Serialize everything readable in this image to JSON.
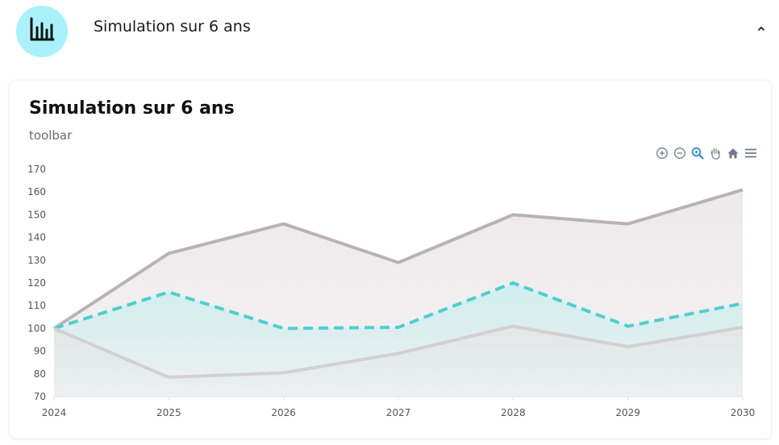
{
  "header": {
    "title": "Simulation sur 6 ans",
    "icon": "bar-chart-icon",
    "collapse_icon": "chevron-up-icon"
  },
  "card": {
    "title": "Simulation sur 6 ans",
    "subtitle": "toolbar"
  },
  "toolbar": {
    "icons": [
      "zoom-in-icon",
      "zoom-out-icon",
      "selection-zoom-icon",
      "pan-hand-icon",
      "home-reset-icon",
      "menu-icon"
    ]
  },
  "colors": {
    "avatar_bg": "#a9f2fb",
    "upper_line": "#b9b2b5",
    "middle_line": "#4ecfcf",
    "lower_line": "#d3d0d1",
    "toolbar_active": "#2a89d4",
    "toolbar_icon": "#6e7a89"
  },
  "chart_data": {
    "type": "area",
    "title": "Simulation sur 6 ans",
    "xlabel": "",
    "ylabel": "",
    "x": [
      "2024",
      "2025",
      "2026",
      "2027",
      "2028",
      "2029",
      "2030"
    ],
    "ylim": [
      70,
      170
    ],
    "yticks": [
      70,
      80,
      90,
      100,
      110,
      120,
      130,
      140,
      150,
      160,
      170
    ],
    "grid": false,
    "legend": "none",
    "series": [
      {
        "values": [
          100,
          133,
          146,
          129,
          150,
          146,
          161
        ],
        "style": "solid",
        "color": "#b9b2b5"
      },
      {
        "values": [
          100,
          116,
          100,
          100.5,
          120,
          101,
          111
        ],
        "style": "dashed",
        "color": "#4ecfcf"
      },
      {
        "values": [
          100,
          78.5,
          80.5,
          89,
          101,
          92,
          100.5
        ],
        "style": "solid",
        "color": "#d3d0d1"
      }
    ]
  }
}
